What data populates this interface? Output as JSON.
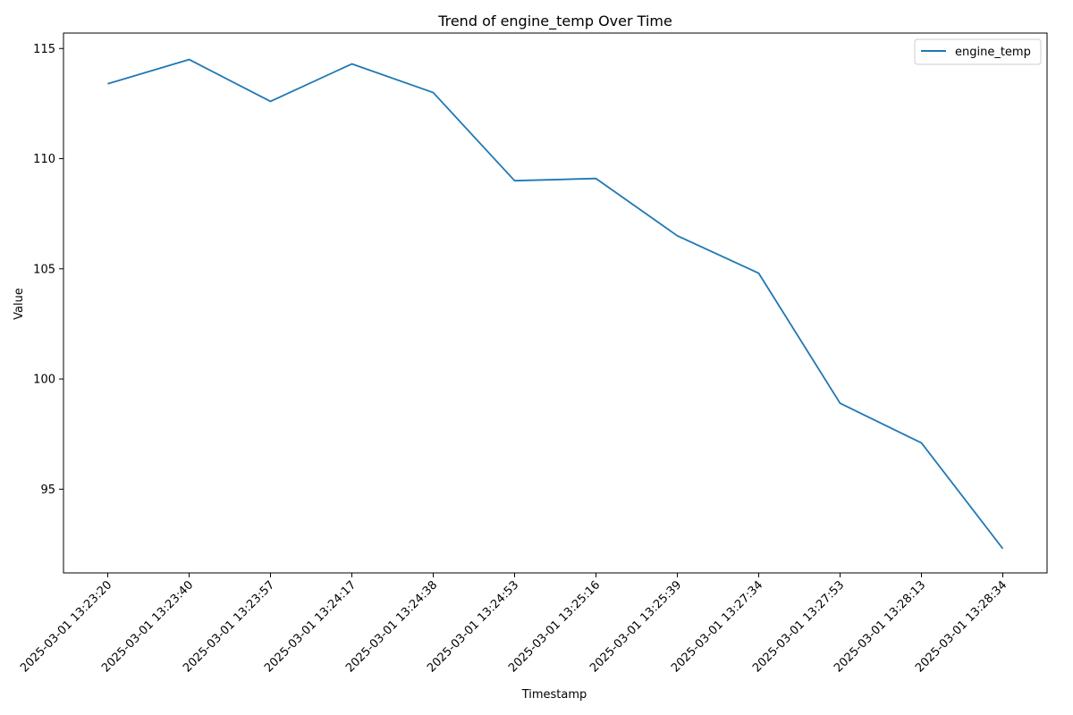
{
  "chart_data": {
    "type": "line",
    "title": "Trend of engine_temp Over Time",
    "xlabel": "Timestamp",
    "ylabel": "Value",
    "categories": [
      "2025-03-01 13:23:20",
      "2025-03-01 13:23:40",
      "2025-03-01 13:23:57",
      "2025-03-01 13:24:17",
      "2025-03-01 13:24:38",
      "2025-03-01 13:24:53",
      "2025-03-01 13:25:16",
      "2025-03-01 13:25:39",
      "2025-03-01 13:27:34",
      "2025-03-01 13:27:53",
      "2025-03-01 13:28:13",
      "2025-03-01 13:28:34"
    ],
    "series": [
      {
        "name": "engine_temp",
        "color": "#1f77b4",
        "values": [
          113.4,
          114.5,
          112.6,
          114.3,
          113.0,
          109.0,
          109.1,
          106.5,
          104.8,
          98.9,
          97.1,
          92.3
        ]
      }
    ],
    "ylim": [
      91.2,
      115.7
    ],
    "yticks": [
      95,
      100,
      105,
      110,
      115
    ],
    "grid": false,
    "legend_position": "top-right"
  }
}
